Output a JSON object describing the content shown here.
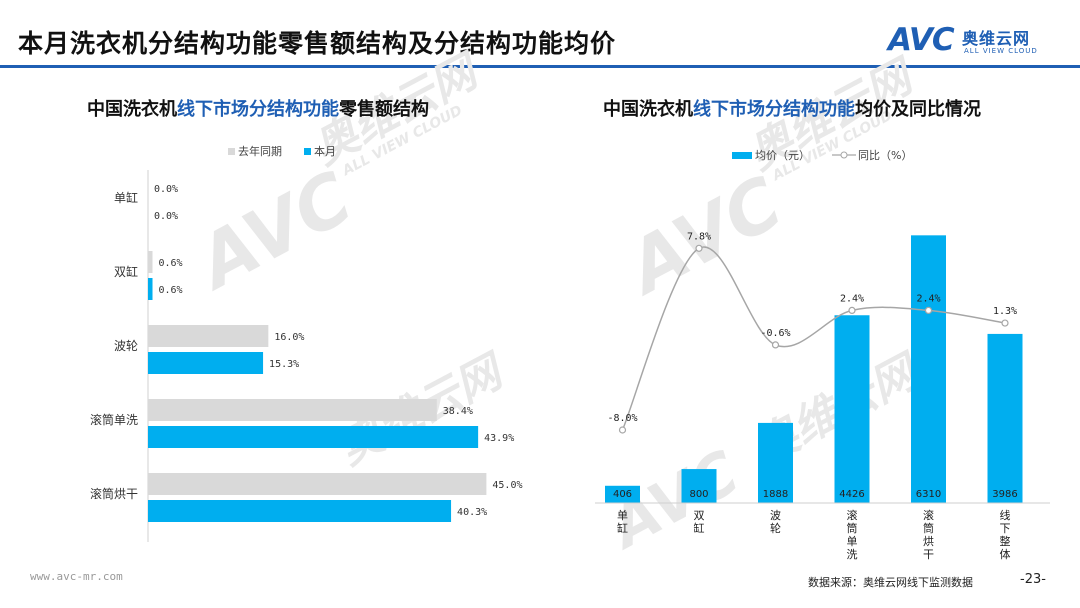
{
  "header": {
    "title": "本月洗衣机分结构功能零售额结构及分结构功能均价",
    "logo_mark": "AVC",
    "logo_name": "奥维云网",
    "logo_sub": "ALL VIEW CLOUD"
  },
  "watermark": {
    "brand": "AVC",
    "name": "奥维云网",
    "sub": "ALL VIEW CLOUD"
  },
  "colors": {
    "accent": "#1f5fb4",
    "bar_current": "#00aeef",
    "bar_last_year": "#d9d9d9",
    "line": "#a6a6a6"
  },
  "left_chart": {
    "title_pre": "中国洗衣机",
    "title_hl": "线下市场分结构功能",
    "title_post": "零售额结构",
    "legend": [
      "去年同期",
      "本月"
    ]
  },
  "right_chart": {
    "title_pre": "中国洗衣机",
    "title_hl": "线下市场分结构功能",
    "title_post": "均价及同比情况",
    "legend_bar": "均价（元）",
    "legend_line": "同比（%）"
  },
  "chart_data": [
    {
      "type": "bar",
      "orientation": "horizontal",
      "categories": [
        "单缸",
        "双缸",
        "波轮",
        "滚筒单洗",
        "滚筒烘干"
      ],
      "series": [
        {
          "name": "去年同期",
          "values": [
            0.0,
            0.6,
            16.0,
            38.4,
            45.0
          ],
          "labels": [
            "0.0%",
            "0.6%",
            "16.0%",
            "38.4%",
            "45.0%"
          ]
        },
        {
          "name": "本月",
          "values": [
            0.0,
            0.6,
            15.3,
            43.9,
            40.3
          ],
          "labels": [
            "0.0%",
            "0.6%",
            "15.3%",
            "43.9%",
            "40.3%"
          ]
        }
      ],
      "xlim": [
        0,
        50
      ],
      "legend": "top",
      "grid": false
    },
    {
      "type": "bar",
      "categories": [
        "单缸",
        "双缸",
        "波轮",
        "滚筒单洗",
        "滚筒烘干",
        "线下整体"
      ],
      "series": [
        {
          "name": "均价（元）",
          "type": "bar",
          "values": [
            406,
            800,
            1888,
            4426,
            6310,
            3986
          ]
        },
        {
          "name": "同比（%）",
          "type": "line",
          "values": [
            -8.0,
            7.8,
            -0.6,
            2.4,
            2.4,
            1.3
          ],
          "labels": [
            "-8.0%",
            "7.8%",
            "-0.6%",
            "2.4%",
            "2.4%",
            "1.3%"
          ]
        }
      ],
      "ylim": [
        0,
        7000
      ],
      "y2lim": [
        -10,
        10
      ],
      "legend": "top",
      "grid": false
    }
  ],
  "footer": {
    "website": "www.avc-mr.com",
    "source": "数据来源：奥维云网线下监测数据",
    "page": "-23-"
  }
}
